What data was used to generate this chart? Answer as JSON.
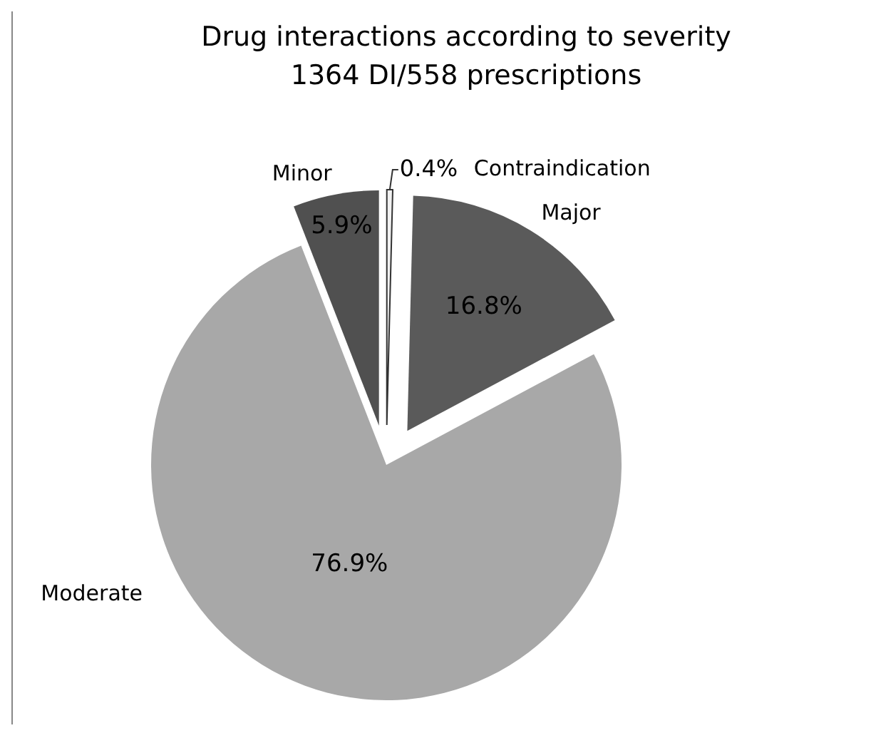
{
  "chart_data": {
    "type": "pie",
    "title": "Drug interactions according to severity\n1364 DI/558 prescriptions",
    "categories": [
      "Contraindication",
      "Major",
      "Moderate",
      "Minor"
    ],
    "values": [
      0.4,
      16.8,
      76.9,
      5.9
    ],
    "value_labels": [
      "0.4%",
      "16.8%",
      "76.9%",
      "5.9%"
    ],
    "colors": [
      "#f2f2f2",
      "#5a5a5a",
      "#a8a8a8",
      "#505050"
    ]
  }
}
